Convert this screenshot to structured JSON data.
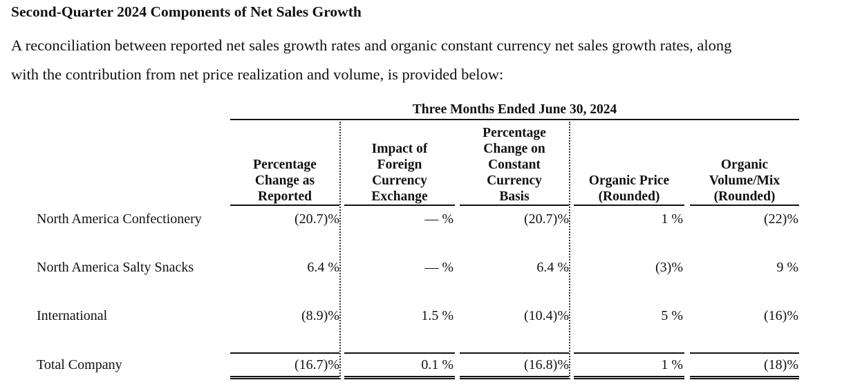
{
  "heading": "Second-Quarter 2024 Components of Net Sales Growth",
  "intro_lines": [
    "A reconciliation between reported net sales growth rates and organic constant currency net sales growth rates, along",
    "with the contribution from net price realization and volume, is provided below:"
  ],
  "table": {
    "period_header": "Three Months Ended June 30, 2024",
    "columns": [
      {
        "lines": [
          "Percentage",
          "Change as",
          "Reported"
        ]
      },
      {
        "lines": [
          "Impact of",
          "Foreign",
          "Currency",
          "Exchange"
        ]
      },
      {
        "lines": [
          "Percentage",
          "Change on",
          "Constant",
          "Currency",
          "Basis"
        ]
      },
      {
        "lines": [
          "Organic Price",
          "(Rounded)"
        ]
      },
      {
        "lines": [
          "Organic",
          "Volume/Mix",
          "(Rounded)"
        ]
      }
    ],
    "rows": [
      {
        "label": "North America Confectionery",
        "values": [
          "(20.7)%",
          "— %",
          "(20.7)%",
          "1 %",
          "(22)%"
        ]
      },
      {
        "label": "North America Salty Snacks",
        "values": [
          "6.4 %",
          "— %",
          "6.4 %",
          "(3)%",
          "9 %"
        ]
      },
      {
        "label": "International",
        "values": [
          "(8.9)%",
          "1.5 %",
          "(10.4)%",
          "5 %",
          "(16)%"
        ]
      },
      {
        "label": "Total Company",
        "values": [
          "(16.7)%",
          "0.1 %",
          "(16.8)%",
          "1 %",
          "(18)%"
        ]
      }
    ]
  }
}
